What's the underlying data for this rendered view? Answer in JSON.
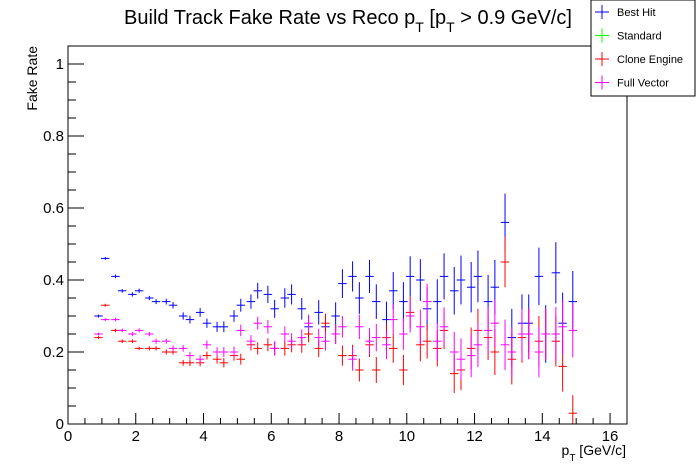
{
  "chart_data": {
    "type": "scatter",
    "title": "Build Track Fake Rate vs Reco p_T [p_T > 0.9 GeV/c]",
    "xlabel": "p_T [GeV/c]",
    "ylabel": "Fake Rate",
    "xlim": [
      0,
      16.5
    ],
    "ylim": [
      0,
      1.05
    ],
    "xticks": [
      "0",
      "2",
      "4",
      "6",
      "8",
      "10",
      "12",
      "14",
      "16"
    ],
    "yticks": [
      "0",
      "0.2",
      "0.4",
      "0.6",
      "0.8",
      "1"
    ],
    "legend_position": "top-right",
    "grid": false,
    "series": [
      {
        "name": "Best Hit",
        "color": "#0000ff",
        "points": [
          [
            0.9,
            0.3,
            0.004
          ],
          [
            1.1,
            0.46,
            0.004
          ],
          [
            1.4,
            0.41,
            0.005
          ],
          [
            1.6,
            0.37,
            0.005
          ],
          [
            1.9,
            0.36,
            0.006
          ],
          [
            2.1,
            0.37,
            0.006
          ],
          [
            2.4,
            0.35,
            0.006
          ],
          [
            2.6,
            0.34,
            0.007
          ],
          [
            2.9,
            0.34,
            0.008
          ],
          [
            3.1,
            0.33,
            0.009
          ],
          [
            3.4,
            0.3,
            0.01
          ],
          [
            3.6,
            0.29,
            0.011
          ],
          [
            3.9,
            0.31,
            0.012
          ],
          [
            4.1,
            0.28,
            0.013
          ],
          [
            4.4,
            0.27,
            0.014
          ],
          [
            4.6,
            0.27,
            0.015
          ],
          [
            4.9,
            0.3,
            0.016
          ],
          [
            5.1,
            0.33,
            0.018
          ],
          [
            5.4,
            0.34,
            0.02
          ],
          [
            5.6,
            0.37,
            0.022
          ],
          [
            5.9,
            0.36,
            0.024
          ],
          [
            6.1,
            0.32,
            0.025
          ],
          [
            6.4,
            0.35,
            0.027
          ],
          [
            6.6,
            0.36,
            0.028
          ],
          [
            6.9,
            0.32,
            0.03
          ],
          [
            7.1,
            0.27,
            0.032
          ],
          [
            7.4,
            0.31,
            0.034
          ],
          [
            7.6,
            0.27,
            0.036
          ],
          [
            7.9,
            0.3,
            0.038
          ],
          [
            8.1,
            0.39,
            0.04
          ],
          [
            8.4,
            0.41,
            0.042
          ],
          [
            8.6,
            0.35,
            0.044
          ],
          [
            8.9,
            0.41,
            0.046
          ],
          [
            9.1,
            0.34,
            0.048
          ],
          [
            9.4,
            0.29,
            0.05
          ],
          [
            9.6,
            0.37,
            0.052
          ],
          [
            9.9,
            0.34,
            0.054
          ],
          [
            10.1,
            0.41,
            0.056
          ],
          [
            10.4,
            0.4,
            0.058
          ],
          [
            10.6,
            0.32,
            0.06
          ],
          [
            10.9,
            0.34,
            0.062
          ],
          [
            11.1,
            0.41,
            0.064
          ],
          [
            11.4,
            0.37,
            0.066
          ],
          [
            11.6,
            0.4,
            0.068
          ],
          [
            11.9,
            0.38,
            0.07
          ],
          [
            12.1,
            0.41,
            0.072
          ],
          [
            12.4,
            0.34,
            0.074
          ],
          [
            12.6,
            0.38,
            0.076
          ],
          [
            12.9,
            0.56,
            0.08
          ],
          [
            13.1,
            0.24,
            0.08
          ],
          [
            13.4,
            0.28,
            0.08
          ],
          [
            13.6,
            0.28,
            0.08
          ],
          [
            13.9,
            0.41,
            0.08
          ],
          [
            14.1,
            0.25,
            0.08
          ],
          [
            14.4,
            0.42,
            0.085
          ],
          [
            14.6,
            0.28,
            0.085
          ],
          [
            14.9,
            0.34,
            0.085
          ]
        ]
      },
      {
        "name": "Standard",
        "color": "#00ff00",
        "points": []
      },
      {
        "name": "Clone Engine",
        "color": "#ff0000",
        "points": [
          [
            0.9,
            0.24,
            0.004
          ],
          [
            1.1,
            0.33,
            0.004
          ],
          [
            1.4,
            0.26,
            0.005
          ],
          [
            1.6,
            0.23,
            0.005
          ],
          [
            1.9,
            0.23,
            0.005
          ],
          [
            2.1,
            0.21,
            0.005
          ],
          [
            2.4,
            0.21,
            0.006
          ],
          [
            2.6,
            0.21,
            0.006
          ],
          [
            2.9,
            0.2,
            0.007
          ],
          [
            3.1,
            0.2,
            0.007
          ],
          [
            3.4,
            0.17,
            0.008
          ],
          [
            3.6,
            0.17,
            0.009
          ],
          [
            3.9,
            0.17,
            0.01
          ],
          [
            4.1,
            0.19,
            0.011
          ],
          [
            4.4,
            0.18,
            0.012
          ],
          [
            4.6,
            0.17,
            0.013
          ],
          [
            4.9,
            0.19,
            0.014
          ],
          [
            5.1,
            0.18,
            0.015
          ],
          [
            5.4,
            0.22,
            0.016
          ],
          [
            5.6,
            0.21,
            0.017
          ],
          [
            5.9,
            0.22,
            0.018
          ],
          [
            6.1,
            0.21,
            0.019
          ],
          [
            6.4,
            0.21,
            0.02
          ],
          [
            6.6,
            0.22,
            0.021
          ],
          [
            6.9,
            0.22,
            0.022
          ],
          [
            7.1,
            0.25,
            0.023
          ],
          [
            7.4,
            0.21,
            0.024
          ],
          [
            7.6,
            0.28,
            0.025
          ],
          [
            7.9,
            0.25,
            0.026
          ],
          [
            8.1,
            0.19,
            0.028
          ],
          [
            8.4,
            0.19,
            0.03
          ],
          [
            8.6,
            0.15,
            0.032
          ],
          [
            8.9,
            0.22,
            0.034
          ],
          [
            9.1,
            0.15,
            0.036
          ],
          [
            9.4,
            0.24,
            0.038
          ],
          [
            9.6,
            0.21,
            0.04
          ],
          [
            9.9,
            0.15,
            0.042
          ],
          [
            10.1,
            0.31,
            0.044
          ],
          [
            10.4,
            0.22,
            0.046
          ],
          [
            10.6,
            0.23,
            0.048
          ],
          [
            10.9,
            0.21,
            0.05
          ],
          [
            11.1,
            0.26,
            0.052
          ],
          [
            11.4,
            0.14,
            0.054
          ],
          [
            11.6,
            0.15,
            0.056
          ],
          [
            11.9,
            0.21,
            0.058
          ],
          [
            12.1,
            0.26,
            0.06
          ],
          [
            12.4,
            0.24,
            0.062
          ],
          [
            12.6,
            0.2,
            0.064
          ],
          [
            12.9,
            0.45,
            0.07
          ],
          [
            13.1,
            0.18,
            0.07
          ],
          [
            13.4,
            0.24,
            0.07
          ],
          [
            13.6,
            0.25,
            0.07
          ],
          [
            13.9,
            0.23,
            0.07
          ],
          [
            14.1,
            0.25,
            0.07
          ],
          [
            14.4,
            0.23,
            0.07
          ],
          [
            14.6,
            0.16,
            0.07
          ],
          [
            14.9,
            0.03,
            0.05
          ]
        ]
      },
      {
        "name": "Full Vector",
        "color": "#ff00ff",
        "points": [
          [
            0.9,
            0.25,
            0.004
          ],
          [
            1.1,
            0.29,
            0.004
          ],
          [
            1.4,
            0.29,
            0.005
          ],
          [
            1.6,
            0.26,
            0.005
          ],
          [
            1.9,
            0.25,
            0.006
          ],
          [
            2.1,
            0.26,
            0.006
          ],
          [
            2.4,
            0.25,
            0.006
          ],
          [
            2.6,
            0.23,
            0.007
          ],
          [
            2.9,
            0.23,
            0.007
          ],
          [
            3.1,
            0.21,
            0.008
          ],
          [
            3.4,
            0.21,
            0.009
          ],
          [
            3.6,
            0.19,
            0.01
          ],
          [
            3.9,
            0.18,
            0.011
          ],
          [
            4.1,
            0.22,
            0.012
          ],
          [
            4.4,
            0.2,
            0.013
          ],
          [
            4.6,
            0.2,
            0.014
          ],
          [
            4.9,
            0.2,
            0.015
          ],
          [
            5.1,
            0.26,
            0.016
          ],
          [
            5.4,
            0.23,
            0.017
          ],
          [
            5.6,
            0.28,
            0.018
          ],
          [
            5.9,
            0.27,
            0.019
          ],
          [
            6.1,
            0.21,
            0.02
          ],
          [
            6.4,
            0.25,
            0.021
          ],
          [
            6.6,
            0.23,
            0.022
          ],
          [
            6.9,
            0.24,
            0.023
          ],
          [
            7.1,
            0.28,
            0.024
          ],
          [
            7.4,
            0.24,
            0.025
          ],
          [
            7.6,
            0.23,
            0.026
          ],
          [
            7.9,
            0.25,
            0.028
          ],
          [
            8.1,
            0.27,
            0.03
          ],
          [
            8.4,
            0.18,
            0.032
          ],
          [
            8.6,
            0.27,
            0.034
          ],
          [
            8.9,
            0.23,
            0.036
          ],
          [
            9.1,
            0.24,
            0.038
          ],
          [
            9.4,
            0.22,
            0.04
          ],
          [
            9.6,
            0.29,
            0.042
          ],
          [
            9.9,
            0.25,
            0.044
          ],
          [
            10.1,
            0.3,
            0.046
          ],
          [
            10.4,
            0.27,
            0.048
          ],
          [
            10.6,
            0.34,
            0.05
          ],
          [
            10.9,
            0.23,
            0.052
          ],
          [
            11.1,
            0.27,
            0.054
          ],
          [
            11.4,
            0.2,
            0.056
          ],
          [
            11.6,
            0.18,
            0.058
          ],
          [
            11.9,
            0.19,
            0.06
          ],
          [
            12.1,
            0.22,
            0.062
          ],
          [
            12.4,
            0.26,
            0.064
          ],
          [
            12.6,
            0.28,
            0.066
          ],
          [
            12.9,
            0.22,
            0.07
          ],
          [
            13.1,
            0.2,
            0.07
          ],
          [
            13.4,
            0.25,
            0.07
          ],
          [
            13.6,
            0.25,
            0.07
          ],
          [
            13.9,
            0.2,
            0.07
          ],
          [
            14.1,
            0.25,
            0.07
          ],
          [
            14.4,
            0.25,
            0.075
          ],
          [
            14.6,
            0.27,
            0.075
          ],
          [
            14.9,
            0.26,
            0.075
          ]
        ]
      }
    ]
  }
}
